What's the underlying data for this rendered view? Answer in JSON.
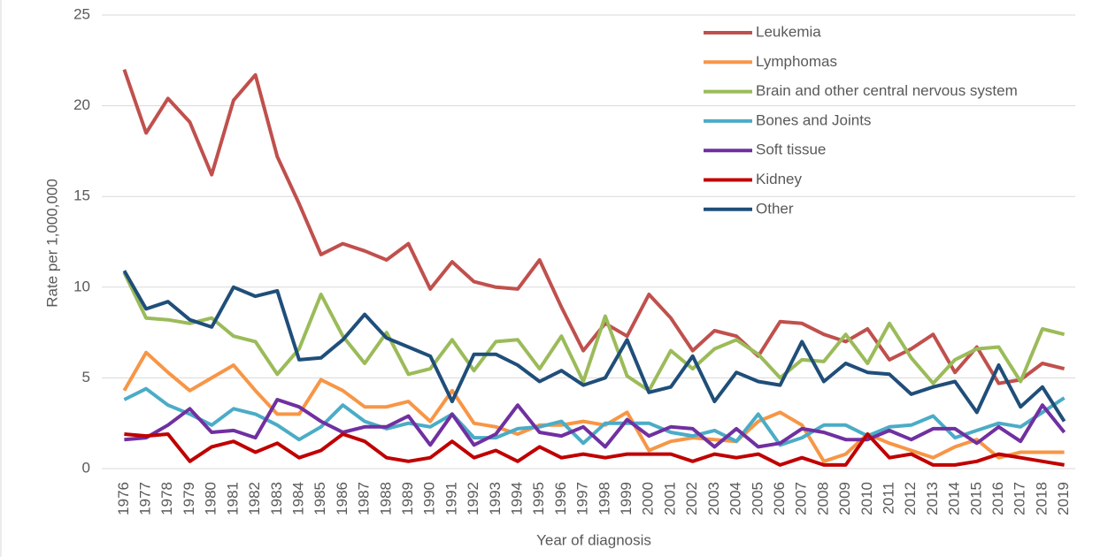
{
  "chart_data": {
    "type": "line",
    "x_label": "Year of diagnosis",
    "y_label": "Rate per 1,000,000",
    "categories": [
      "1976",
      "1977",
      "1978",
      "1979",
      "1980",
      "1981",
      "1982",
      "1983",
      "1984",
      "1985",
      "1986",
      "1987",
      "1988",
      "1989",
      "1990",
      "1991",
      "1992",
      "1993",
      "1994",
      "1995",
      "1996",
      "1997",
      "1998",
      "1999",
      "2000",
      "2001",
      "2002",
      "2003",
      "2004",
      "2005",
      "2006",
      "2007",
      "2008",
      "2009",
      "2010",
      "2011",
      "2012",
      "2013",
      "2014",
      "2015",
      "2016",
      "2017",
      "2018",
      "2019"
    ],
    "ylim": [
      0,
      25
    ],
    "yticks": [
      0,
      5,
      10,
      15,
      20,
      25
    ],
    "grid": true,
    "legend": "top-right",
    "series": [
      {
        "name": "Leukemia",
        "color": "#c0504d",
        "values": [
          22,
          18.5,
          20.4,
          19.1,
          16.2,
          20.3,
          21.7,
          17.2,
          14.6,
          11.8,
          12.4,
          12.0,
          11.5,
          12.4,
          9.9,
          11.4,
          10.3,
          10.0,
          9.9,
          11.5,
          8.9,
          6.5,
          8.0,
          7.3,
          9.6,
          8.3,
          6.5,
          7.6,
          7.3,
          6.2,
          8.1,
          8.0,
          7.4,
          7.0,
          7.7,
          6.0,
          6.6,
          7.4,
          5.3,
          6.7,
          4.7,
          4.9,
          5.8,
          5.5
        ]
      },
      {
        "name": "Lymphomas",
        "color": "#f79646",
        "values": [
          4.3,
          6.4,
          5.3,
          4.3,
          5.0,
          5.7,
          4.3,
          3.0,
          3.0,
          4.9,
          4.3,
          3.4,
          3.4,
          3.7,
          2.6,
          4.3,
          2.5,
          2.3,
          1.9,
          2.4,
          2.4,
          2.6,
          2.4,
          3.1,
          1.0,
          1.5,
          1.7,
          1.6,
          1.5,
          2.6,
          3.1,
          2.4,
          0.4,
          0.8,
          1.9,
          1.4,
          1.0,
          0.6,
          1.2,
          1.6,
          0.6,
          0.9,
          0.9,
          0.9
        ]
      },
      {
        "name": "Brain and other central nervous system",
        "color": "#9bbb59",
        "values": [
          10.8,
          8.3,
          8.2,
          8.0,
          8.3,
          7.3,
          7.0,
          5.2,
          6.6,
          9.6,
          7.3,
          5.8,
          7.5,
          5.2,
          5.5,
          7.1,
          5.4,
          7.0,
          7.1,
          5.5,
          7.3,
          4.8,
          8.4,
          5.1,
          4.3,
          6.5,
          5.5,
          6.6,
          7.1,
          6.3,
          5.0,
          6.0,
          5.9,
          7.4,
          5.8,
          8.0,
          6.1,
          4.7,
          6.0,
          6.6,
          6.7,
          4.8,
          7.7,
          7.4
        ]
      },
      {
        "name": "Bones and Joints",
        "color": "#4bacc6",
        "values": [
          3.8,
          4.4,
          3.5,
          3.0,
          2.4,
          3.3,
          3.0,
          2.4,
          1.6,
          2.3,
          3.5,
          2.6,
          2.2,
          2.5,
          2.3,
          3.0,
          1.7,
          1.7,
          2.2,
          2.3,
          2.6,
          1.4,
          2.5,
          2.5,
          2.5,
          2.0,
          1.8,
          2.1,
          1.5,
          3.0,
          1.3,
          1.7,
          2.4,
          2.4,
          1.8,
          2.3,
          2.4,
          2.9,
          1.7,
          2.1,
          2.5,
          2.3,
          3.1,
          3.9
        ]
      },
      {
        "name": "Soft tissue",
        "color": "#7030a0",
        "values": [
          1.6,
          1.7,
          2.4,
          3.3,
          2.0,
          2.1,
          1.7,
          3.8,
          3.4,
          2.6,
          2.0,
          2.3,
          2.3,
          2.9,
          1.3,
          3.0,
          1.3,
          1.9,
          3.5,
          2.0,
          1.8,
          2.3,
          1.2,
          2.7,
          1.8,
          2.3,
          2.2,
          1.2,
          2.2,
          1.2,
          1.4,
          2.2,
          2.0,
          1.6,
          1.6,
          2.1,
          1.6,
          2.2,
          2.2,
          1.4,
          2.3,
          1.5,
          3.5,
          2.0
        ]
      },
      {
        "name": "Kidney",
        "color": "#c00000",
        "values": [
          1.9,
          1.8,
          1.9,
          0.4,
          1.2,
          1.5,
          0.9,
          1.4,
          0.6,
          1.0,
          1.9,
          1.5,
          0.6,
          0.4,
          0.6,
          1.5,
          0.6,
          1.0,
          0.4,
          1.2,
          0.6,
          0.8,
          0.6,
          0.8,
          0.8,
          0.8,
          0.4,
          0.8,
          0.6,
          0.8,
          0.2,
          0.6,
          0.2,
          0.2,
          1.9,
          0.6,
          0.8,
          0.2,
          0.2,
          0.4,
          0.8,
          0.6,
          0.4,
          0.2
        ]
      },
      {
        "name": "Other",
        "color": "#1f4e79",
        "values": [
          10.9,
          8.8,
          9.2,
          8.2,
          7.8,
          10.0,
          9.5,
          9.8,
          6.0,
          6.1,
          7.1,
          8.5,
          7.2,
          6.7,
          6.2,
          3.7,
          6.3,
          6.3,
          5.7,
          4.8,
          5.4,
          4.6,
          5.0,
          7.1,
          4.2,
          4.5,
          6.2,
          3.7,
          5.3,
          4.8,
          4.6,
          7.0,
          4.8,
          5.8,
          5.3,
          5.2,
          4.1,
          4.5,
          4.8,
          3.1,
          5.7,
          3.4,
          4.5,
          2.6
        ]
      }
    ]
  }
}
